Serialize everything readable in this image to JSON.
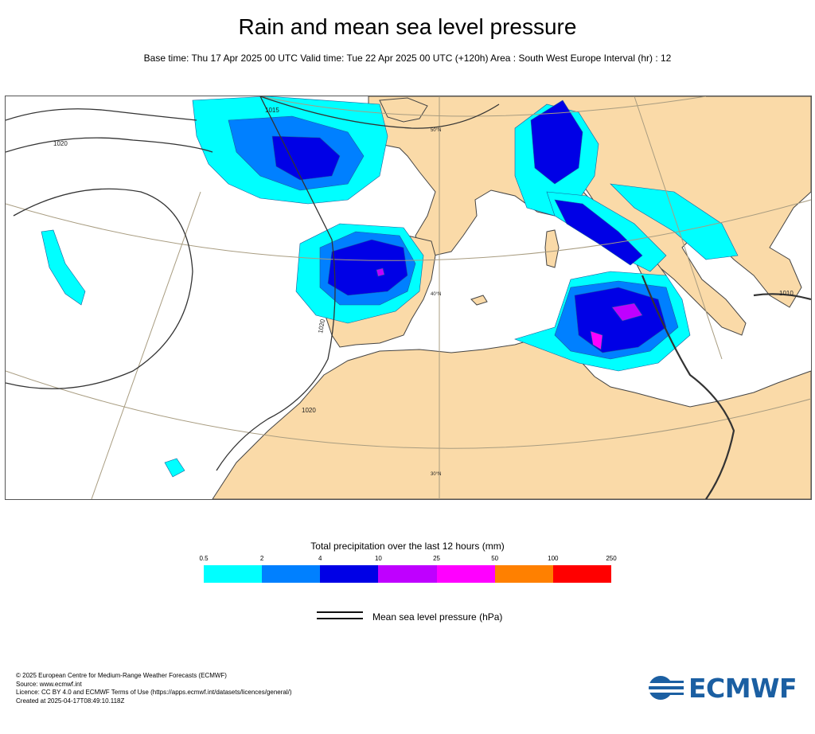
{
  "header": {
    "title": "Rain and mean sea level pressure",
    "subtitle": "Base time: Thu 17 Apr 2025 00 UTC Valid time: Tue 22 Apr 2025 00 UTC (+120h) Area : South West Europe Interval (hr) : 12"
  },
  "map": {
    "isobar_labels": [
      "1020",
      "1015",
      "1020",
      "1020",
      "1010"
    ],
    "lat_labels": [
      "50°N",
      "40°N",
      "30°N"
    ],
    "colors": {
      "land": "#fadaa8",
      "sea": "#ffffff",
      "coast": "#444444"
    }
  },
  "legend": {
    "title": "Total precipitation over the last 12 hours (mm)",
    "labels": [
      "0.5",
      "2",
      "4",
      "10",
      "25",
      "50",
      "100",
      "250"
    ],
    "colors": [
      "#00ffff",
      "#0080ff",
      "#0000e6",
      "#bf00ff",
      "#ff00ff",
      "#ff8000",
      "#ff0000"
    ]
  },
  "mslp_legend": {
    "label": "Mean sea level pressure (hPa)"
  },
  "credits": [
    "© 2025 European Centre for Medium-Range Weather Forecasts (ECMWF)",
    "Source: www.ecmwf.int",
    "Licence: CC BY 4.0 and ECMWF Terms of Use (https://apps.ecmwf.int/datasets/licences/general/)",
    "Created at 2025-04-17T08:49:10.118Z"
  ],
  "logo": {
    "text": "ECMWF",
    "icon": "ecmwf-logo-icon"
  }
}
